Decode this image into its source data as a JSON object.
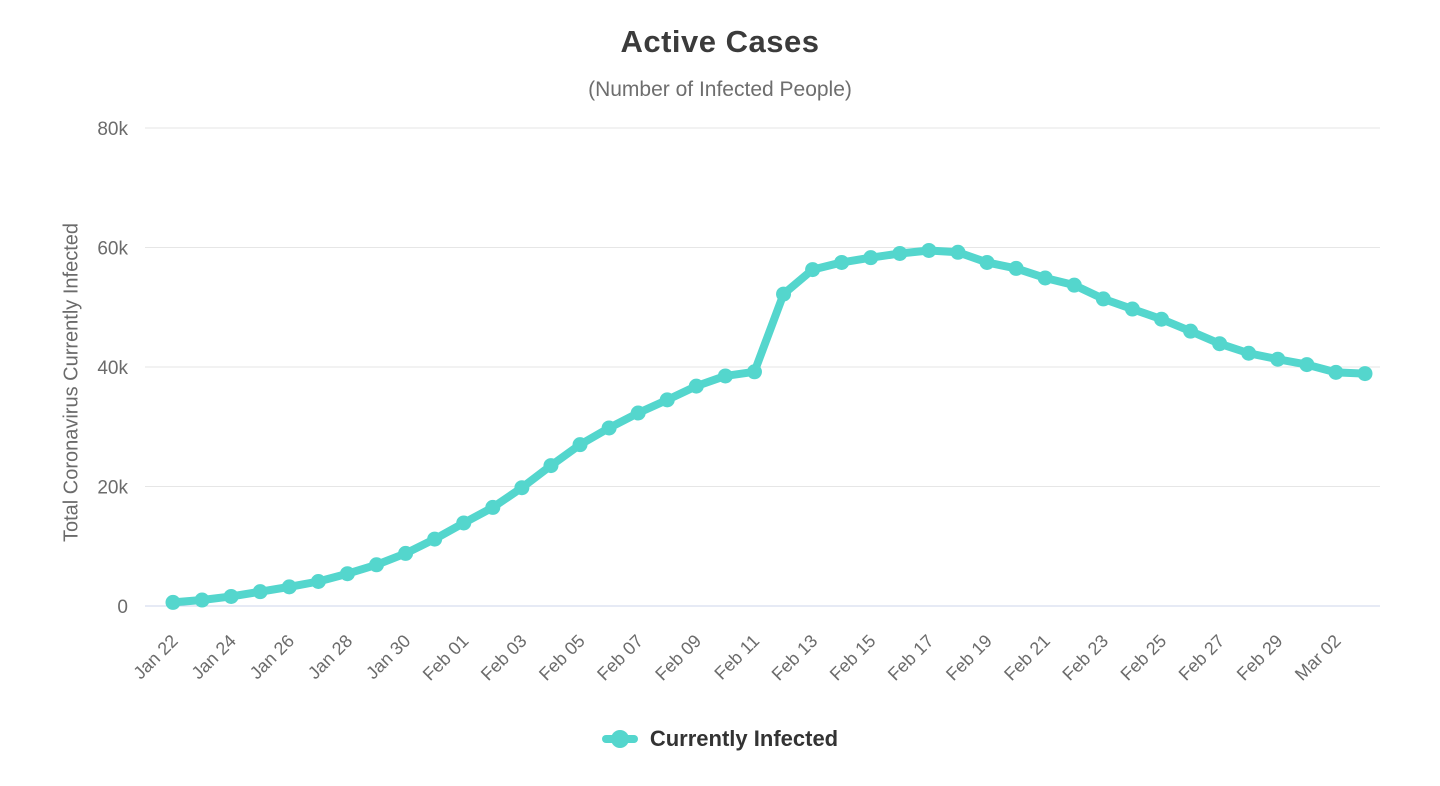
{
  "chart_data": {
    "type": "line",
    "title": "Active Cases",
    "subtitle": "(Number of Infected People)",
    "ylabel": "Total Coronavirus Currently Infected",
    "xlabel": "",
    "ylim": [
      0,
      80000
    ],
    "yticks": {
      "values": [
        0,
        20000,
        40000,
        60000,
        80000
      ],
      "labels": [
        "0",
        "20k",
        "40k",
        "60k",
        "80k"
      ]
    },
    "xtick_every": 2,
    "grid": true,
    "legend_position": "bottom-center",
    "categories": [
      "Jan 22",
      "Jan 23",
      "Jan 24",
      "Jan 25",
      "Jan 26",
      "Jan 27",
      "Jan 28",
      "Jan 29",
      "Jan 30",
      "Jan 31",
      "Feb 01",
      "Feb 02",
      "Feb 03",
      "Feb 04",
      "Feb 05",
      "Feb 06",
      "Feb 07",
      "Feb 08",
      "Feb 09",
      "Feb 10",
      "Feb 11",
      "Feb 12",
      "Feb 13",
      "Feb 14",
      "Feb 15",
      "Feb 16",
      "Feb 17",
      "Feb 18",
      "Feb 19",
      "Feb 20",
      "Feb 21",
      "Feb 22",
      "Feb 23",
      "Feb 24",
      "Feb 25",
      "Feb 26",
      "Feb 27",
      "Feb 28",
      "Feb 29",
      "Mar 01",
      "Mar 02",
      "Mar 03"
    ],
    "series": [
      {
        "name": "Currently Infected",
        "color": "#54d6cd",
        "values": [
          600,
          1000,
          1600,
          2400,
          3200,
          4100,
          5400,
          6900,
          8800,
          11200,
          13900,
          16500,
          19800,
          23500,
          27000,
          29800,
          32300,
          34500,
          36800,
          38500,
          39200,
          52200,
          56300,
          57500,
          58300,
          59000,
          59500,
          59200,
          57500,
          56500,
          54900,
          53700,
          51400,
          49700,
          48000,
          46000,
          43900,
          42300,
          41300,
          40400,
          39100,
          38900
        ]
      }
    ],
    "colors": {
      "line": "#54d6cd",
      "grid": "#e6e6e6",
      "axis_line": "#ccd6eb",
      "title_text": "#3b3b3b",
      "subtitle_text": "#6e6e6e",
      "tick_text": "#6b6b6b",
      "legend_text": "#333333"
    }
  }
}
